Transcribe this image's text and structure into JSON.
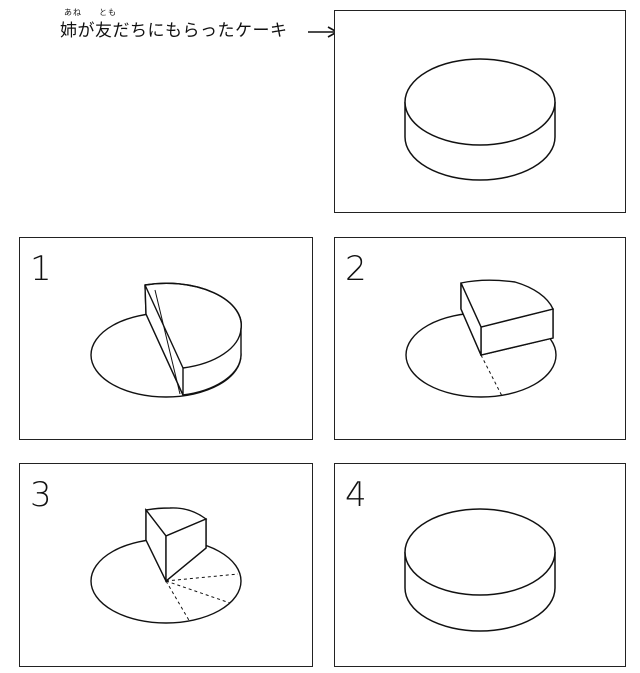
{
  "caption": {
    "furigana_ane": "あね",
    "furigana_tomo": "とも",
    "text": "姉が友だちにもらったケーキ"
  },
  "panels": [
    {
      "label": "",
      "slices_remaining": 6
    },
    {
      "label": "1",
      "slices_remaining": 3
    },
    {
      "label": "2",
      "slices_remaining": 1
    },
    {
      "label": "3",
      "slices_remaining": 1
    },
    {
      "label": "4",
      "slices_remaining": 6
    }
  ]
}
